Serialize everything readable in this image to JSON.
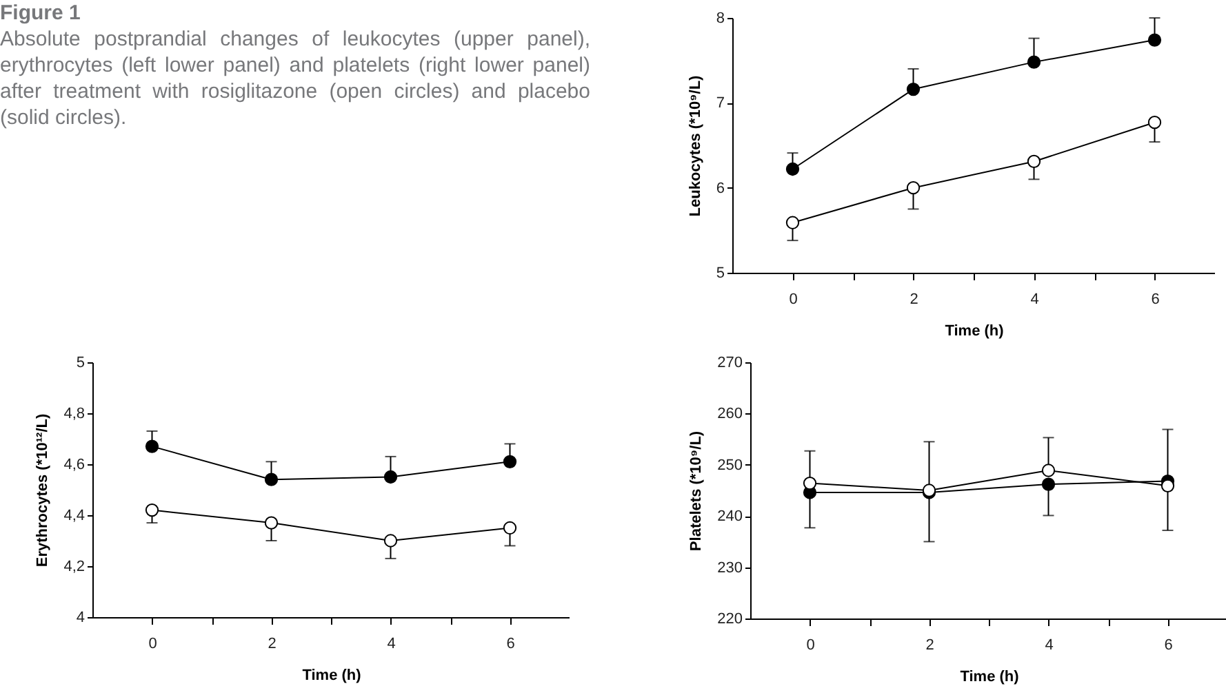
{
  "chart_data": [
    {
      "type": "other",
      "title": "Figure 1",
      "annotations": [
        "Absolute postprandial changes of leukocytes (upper panel), erythrocytes (left lower panel) and platelets (right lower panel) after treatment with rosiglitazone (open circles) and placebo (solid circles)."
      ]
    },
    {
      "type": "line",
      "xlabel": "Time (h)",
      "ylabel": "Leukocytes (*10⁹/L)",
      "x": [
        0,
        2,
        4,
        6
      ],
      "xlim": [
        -1,
        7
      ],
      "xticks": [
        0,
        {
          "value": 1,
          "label": null
        },
        2,
        {
          "value": 3,
          "label": null
        },
        4,
        {
          "value": 5,
          "label": null
        },
        6
      ],
      "ylim": [
        5,
        8
      ],
      "yticks": [
        5,
        6,
        7,
        8
      ],
      "grid": false,
      "marker": "circle",
      "line_style": "solid",
      "series": [
        {
          "color": "#000000",
          "values": [
            6.22,
            7.16,
            7.48,
            7.74
          ],
          "errors": [
            [
              6.22,
              6.41
            ],
            [
              7.16,
              7.4
            ],
            [
              7.48,
              7.76
            ],
            [
              7.74,
              8.0
            ]
          ]
        },
        {
          "color": "#000000",
          "values": [
            5.59,
            6.0,
            6.31,
            6.77
          ],
          "errors": [
            [
              5.38,
              5.59
            ],
            [
              5.75,
              6.0
            ],
            [
              6.1,
              6.31
            ],
            [
              6.54,
              6.77
            ]
          ]
        }
      ]
    },
    {
      "type": "line",
      "xlabel": "Time (h)",
      "ylabel": "Erythrocytes (*10¹²/L)",
      "x": [
        0,
        2,
        4,
        6
      ],
      "xlim": [
        -1,
        7
      ],
      "xticks": [
        0,
        {
          "value": 1,
          "label": null
        },
        2,
        {
          "value": 3,
          "label": null
        },
        4,
        {
          "value": 5,
          "label": null
        },
        6
      ],
      "ylim": [
        4,
        5
      ],
      "yticks": [
        4,
        {
          "value": 4.2,
          "label": "4,2"
        },
        {
          "value": 4.4,
          "label": "4,4"
        },
        {
          "value": 4.6,
          "label": "4,6"
        },
        {
          "value": 4.8,
          "label": "4,8"
        },
        5
      ],
      "grid": false,
      "marker": "circle",
      "line_style": "solid",
      "series": [
        {
          "color": "#000000",
          "values": [
            4.67,
            4.54,
            4.55,
            4.61
          ],
          "errors": [
            [
              4.67,
              4.73
            ],
            [
              4.54,
              4.61
            ],
            [
              4.55,
              4.63
            ],
            [
              4.61,
              4.68
            ]
          ]
        },
        {
          "color": "#000000",
          "values": [
            4.42,
            4.37,
            4.3,
            4.35
          ],
          "errors": [
            [
              4.37,
              4.42
            ],
            [
              4.3,
              4.37
            ],
            [
              4.23,
              4.3
            ],
            [
              4.28,
              4.35
            ]
          ]
        }
      ]
    },
    {
      "type": "line",
      "xlabel": "Time (h)",
      "ylabel": "Platelets (*10⁹/L)",
      "x": [
        0,
        2,
        4,
        6
      ],
      "xlim": [
        -1,
        7
      ],
      "xticks": [
        0,
        {
          "value": 1,
          "label": null
        },
        2,
        {
          "value": 3,
          "label": null
        },
        4,
        {
          "value": 5,
          "label": null
        },
        6
      ],
      "ylim": [
        220,
        270
      ],
      "yticks": [
        220,
        230,
        240,
        250,
        260,
        270
      ],
      "grid": false,
      "marker": "circle",
      "line_style": "solid",
      "series": [
        {
          "color": "#000000",
          "values": [
            244.6,
            244.6,
            246.2,
            246.8
          ],
          "errors": [
            [
              237.7,
              244.6
            ],
            [
              235.0,
              244.6
            ],
            [
              240.1,
              246.2
            ],
            [
              246.8,
              256.9
            ]
          ]
        },
        {
          "color": "#000000",
          "values": [
            246.4,
            245.0,
            248.9,
            245.9
          ],
          "errors": [
            [
              246.4,
              252.7
            ],
            [
              245.0,
              254.5
            ],
            [
              248.9,
              255.3
            ],
            [
              237.2,
              245.9
            ]
          ]
        }
      ]
    }
  ]
}
